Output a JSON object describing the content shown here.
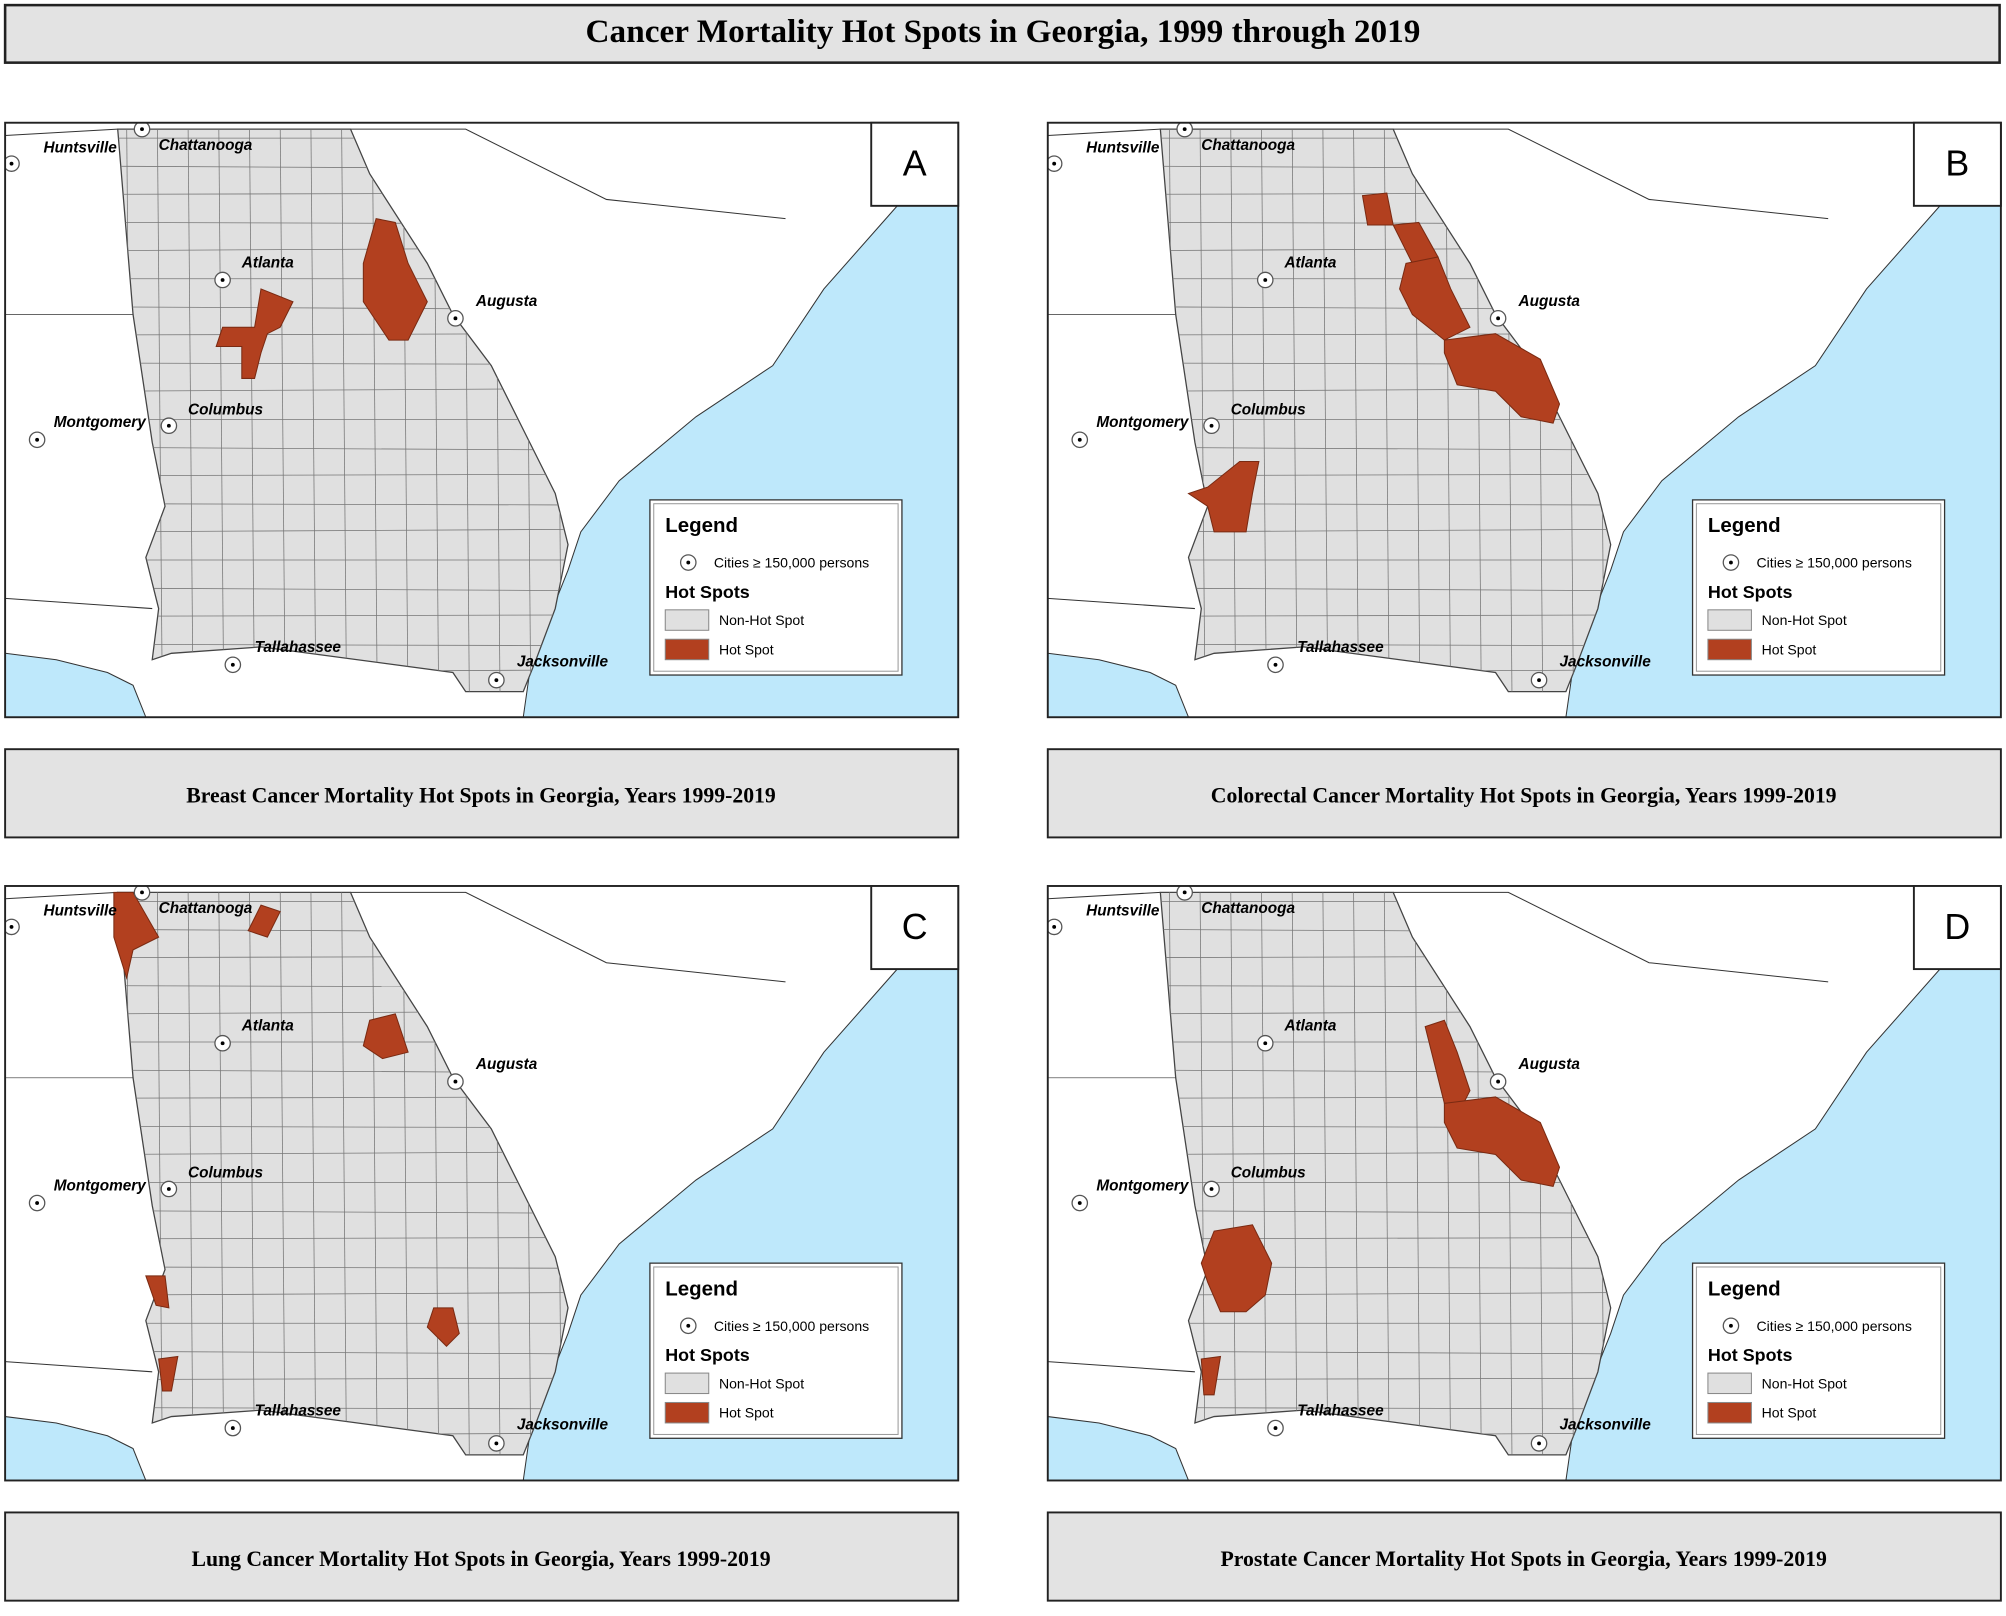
{
  "header": {
    "title": "Cancer Mortality Hot Spots in Georgia, 1999 through 2019"
  },
  "panels": [
    {
      "label": "A",
      "caption": "Breast Cancer Mortality Hot Spots in Georgia, Years 1999-2019"
    },
    {
      "label": "B",
      "caption": "Colorectal Cancer Mortality Hot Spots in Georgia, Years 1999-2019"
    },
    {
      "label": "C",
      "caption": "Lung Cancer Mortality Hot Spots in Georgia, Years 1999-2019"
    },
    {
      "label": "D",
      "caption": "Prostate Cancer Mortality Hot Spots in Georgia, Years 1999-2019"
    }
  ],
  "cities": [
    "Huntsville",
    "Chattanooga",
    "Atlanta",
    "Augusta",
    "Montgomery",
    "Columbus",
    "Tallahassee",
    "Jacksonville"
  ],
  "legend": {
    "title": "Legend",
    "cities": "Cities ≥ 150,000 persons",
    "heading": "Hot Spots",
    "items": [
      "Non-Hot Spot",
      "Hot Spot"
    ]
  }
}
